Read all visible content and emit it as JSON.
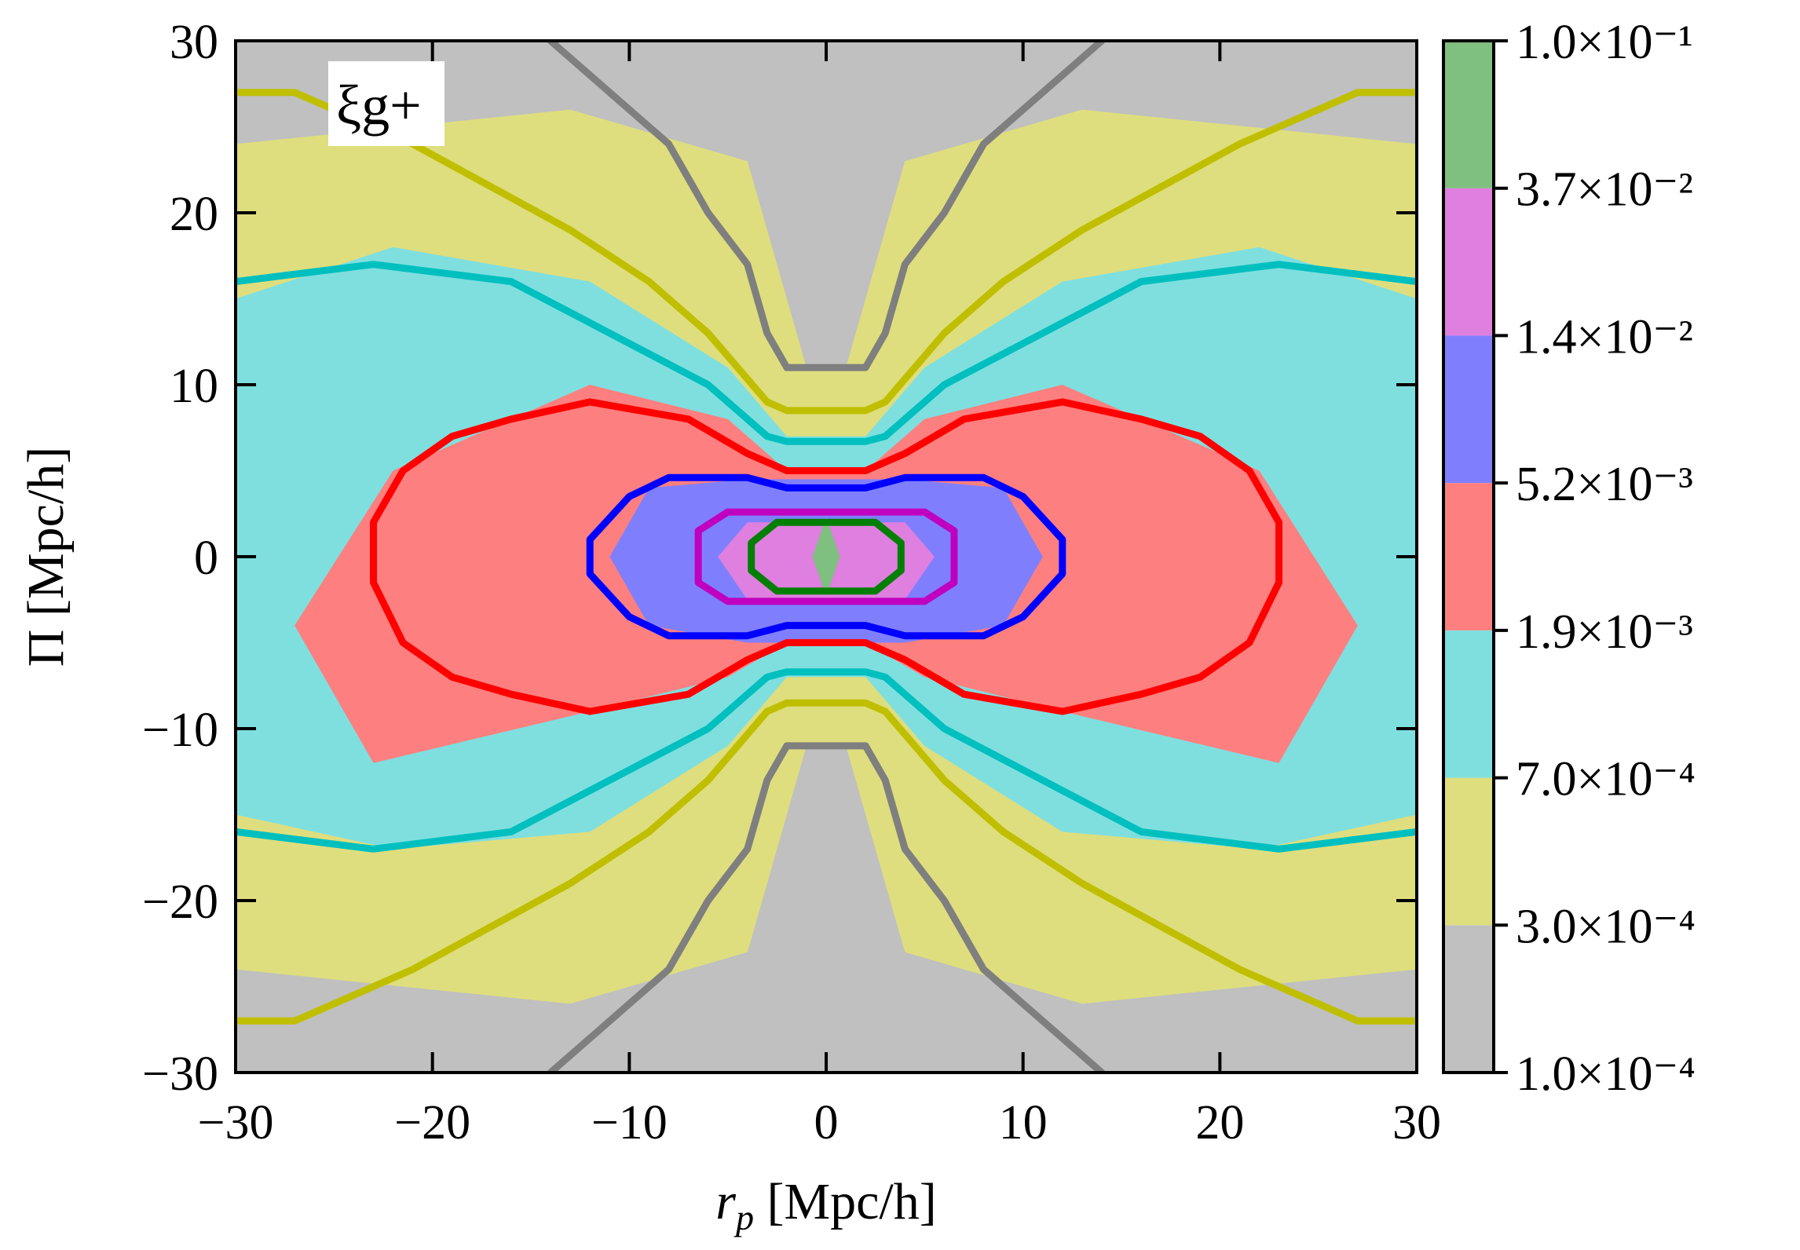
{
  "chart_data": {
    "type": "contour",
    "annotation": "ξg+",
    "xlabel": "r_p [Mpc/h]",
    "ylabel": "Π [Mpc/h]",
    "xlim": [
      -30,
      30
    ],
    "ylim": [
      -30,
      30
    ],
    "xticks": [
      "−30",
      "−20",
      "−10",
      "0",
      "10",
      "20",
      "30"
    ],
    "yticks": [
      "−30",
      "−20",
      "−10",
      "0",
      "10",
      "20",
      "30"
    ],
    "grid": false,
    "colorbar": {
      "position": "right",
      "levels": [
        "1.0×10⁻⁴",
        "3.0×10⁻⁴",
        "7.0×10⁻⁴",
        "1.9×10⁻³",
        "5.2×10⁻³",
        "1.4×10⁻²",
        "3.7×10⁻²",
        "1.0×10⁻¹"
      ],
      "level_values": [
        0.0001,
        0.0003,
        0.0007,
        0.0019,
        0.0052,
        0.014,
        0.037,
        0.1
      ],
      "band_colors": [
        "#c0c0c0",
        "#dede7e",
        "#7fdfdf",
        "#fe7f7f",
        "#7f7ffe",
        "#df7fdf",
        "#7fbf7f"
      ]
    },
    "filled_contours": [
      {
        "level_min": 0.0001,
        "level_max": 0.0003,
        "color": "#c0c0c0",
        "shape": [
          [
            -30,
            30
          ],
          [
            30,
            30
          ],
          [
            30,
            -30
          ],
          [
            -30,
            -30
          ]
        ]
      },
      {
        "level_min": 0.0003,
        "level_max": 0.0007,
        "color": "#dede7e",
        "shape": [
          [
            -30,
            24
          ],
          [
            -13,
            26
          ],
          [
            -4,
            23
          ],
          [
            -1,
            11
          ],
          [
            1,
            11
          ],
          [
            4,
            23
          ],
          [
            13,
            26
          ],
          [
            30,
            24
          ],
          [
            30,
            -24
          ],
          [
            13,
            -26
          ],
          [
            4,
            -23
          ],
          [
            1,
            -11
          ],
          [
            -1,
            -11
          ],
          [
            -4,
            -23
          ],
          [
            -13,
            -26
          ],
          [
            -30,
            -24
          ]
        ]
      },
      {
        "level_min": 0.0007,
        "level_max": 0.0019,
        "color": "#7fdfdf",
        "shape": [
          [
            -30,
            15
          ],
          [
            -22,
            18
          ],
          [
            -12,
            16
          ],
          [
            -5,
            11
          ],
          [
            -2,
            7
          ],
          [
            2,
            7
          ],
          [
            5,
            11
          ],
          [
            12,
            16
          ],
          [
            22,
            18
          ],
          [
            30,
            15
          ],
          [
            30,
            -15
          ],
          [
            22,
            -17
          ],
          [
            12,
            -16
          ],
          [
            5,
            -11
          ],
          [
            2,
            -7
          ],
          [
            -2,
            -7
          ],
          [
            -5,
            -11
          ],
          [
            -12,
            -16
          ],
          [
            -22,
            -17
          ],
          [
            -30,
            -15
          ]
        ]
      },
      {
        "level_min": 0.0019,
        "level_max": 0.0052,
        "color": "#fe7f7f",
        "shape": [
          [
            -27,
            -4
          ],
          [
            -22,
            5
          ],
          [
            -12,
            10
          ],
          [
            -5,
            8
          ],
          [
            -2,
            5
          ],
          [
            2,
            5
          ],
          [
            5,
            8
          ],
          [
            12,
            10
          ],
          [
            22,
            5
          ],
          [
            27,
            -4
          ],
          [
            23,
            -12
          ],
          [
            12,
            -9
          ],
          [
            5,
            -7
          ],
          [
            2,
            -5
          ],
          [
            -2,
            -5
          ],
          [
            -5,
            -7
          ],
          [
            -12,
            -9
          ],
          [
            -23,
            -12
          ]
        ]
      },
      {
        "level_min": 0.0052,
        "level_max": 0.014,
        "color": "#7f7ffe",
        "shape": [
          [
            -11,
            0
          ],
          [
            -9,
            4
          ],
          [
            -4,
            4.5
          ],
          [
            4,
            4.5
          ],
          [
            9,
            4
          ],
          [
            11,
            0
          ],
          [
            9,
            -4
          ],
          [
            4,
            -5
          ],
          [
            -4,
            -5
          ],
          [
            -9,
            -4
          ]
        ]
      },
      {
        "level_min": 0.014,
        "level_max": 0.037,
        "color": "#df7fdf",
        "shape": [
          [
            -5.5,
            0
          ],
          [
            -4,
            2
          ],
          [
            4,
            2
          ],
          [
            5.5,
            0
          ],
          [
            4,
            -2.5
          ],
          [
            -4,
            -2.5
          ]
        ]
      },
      {
        "level_min": 0.037,
        "level_max": 0.1,
        "color": "#7fbf7f",
        "shape": [
          [
            -0.7,
            0
          ],
          [
            0,
            2.3
          ],
          [
            0.7,
            0
          ],
          [
            0,
            -2.3
          ]
        ]
      }
    ],
    "line_contours": [
      {
        "color": "#7f7f7f",
        "level": 0.0001,
        "paths": [
          [
            [
              -14,
              30
            ],
            [
              -8,
              24
            ],
            [
              -6,
              20
            ],
            [
              -4,
              17
            ],
            [
              -3,
              13
            ],
            [
              -2,
              11
            ],
            [
              2,
              11
            ],
            [
              3,
              13
            ],
            [
              4,
              17
            ],
            [
              6,
              20
            ],
            [
              8,
              24
            ],
            [
              14,
              30
            ]
          ],
          [
            [
              -14,
              -30
            ],
            [
              -8,
              -24
            ],
            [
              -6,
              -20
            ],
            [
              -4,
              -17
            ],
            [
              -3,
              -13
            ],
            [
              -2,
              -11
            ],
            [
              2,
              -11
            ],
            [
              3,
              -13
            ],
            [
              4,
              -17
            ],
            [
              6,
              -20
            ],
            [
              8,
              -24
            ],
            [
              14,
              -30
            ]
          ]
        ]
      },
      {
        "color": "#bfbf00",
        "level": 0.0003,
        "paths": [
          [
            [
              -30,
              27
            ],
            [
              -27,
              27
            ],
            [
              -21,
              24
            ],
            [
              -13,
              19
            ],
            [
              -9,
              16
            ],
            [
              -6,
              13
            ],
            [
              -3,
              9
            ],
            [
              -2,
              8.5
            ],
            [
              2,
              8.5
            ],
            [
              3,
              9
            ],
            [
              6,
              13
            ],
            [
              9,
              16
            ],
            [
              13,
              19
            ],
            [
              21,
              24
            ],
            [
              27,
              27
            ],
            [
              30,
              27
            ]
          ],
          [
            [
              -30,
              -27
            ],
            [
              -27,
              -27
            ],
            [
              -21,
              -24
            ],
            [
              -13,
              -19
            ],
            [
              -9,
              -16
            ],
            [
              -6,
              -13
            ],
            [
              -3,
              -9
            ],
            [
              -2,
              -8.5
            ],
            [
              2,
              -8.5
            ],
            [
              3,
              -9
            ],
            [
              6,
              -13
            ],
            [
              9,
              -16
            ],
            [
              13,
              -19
            ],
            [
              21,
              -24
            ],
            [
              27,
              -27
            ],
            [
              30,
              -27
            ]
          ]
        ]
      },
      {
        "color": "#00bfbf",
        "level": 0.0007,
        "paths": [
          [
            [
              -30,
              16
            ],
            [
              -23,
              17
            ],
            [
              -16,
              16
            ],
            [
              -11,
              13
            ],
            [
              -6,
              10
            ],
            [
              -3,
              7
            ],
            [
              -2,
              6.7
            ],
            [
              2,
              6.7
            ],
            [
              3,
              7
            ],
            [
              6,
              10
            ],
            [
              11,
              13
            ],
            [
              16,
              16
            ],
            [
              23,
              17
            ],
            [
              30,
              16
            ]
          ],
          [
            [
              -30,
              -16
            ],
            [
              -23,
              -17
            ],
            [
              -16,
              -16
            ],
            [
              -11,
              -13
            ],
            [
              -6,
              -10
            ],
            [
              -3,
              -7
            ],
            [
              -2,
              -6.7
            ],
            [
              2,
              -6.7
            ],
            [
              3,
              -7
            ],
            [
              6,
              -10
            ],
            [
              11,
              -13
            ],
            [
              16,
              -16
            ],
            [
              23,
              -17
            ],
            [
              30,
              -16
            ]
          ]
        ]
      },
      {
        "color": "#ff0000",
        "level": 0.0019,
        "paths": [
          [
            [
              -2,
              5
            ],
            [
              -4,
              6
            ],
            [
              -7,
              8
            ],
            [
              -12,
              9
            ],
            [
              -16,
              8
            ],
            [
              -19,
              7
            ],
            [
              -21.5,
              5
            ],
            [
              -23,
              2
            ],
            [
              -23,
              -1.5
            ],
            [
              -21.5,
              -5
            ],
            [
              -19,
              -7
            ],
            [
              -16,
              -8
            ],
            [
              -12,
              -9
            ],
            [
              -7,
              -8
            ],
            [
              -4,
              -6
            ],
            [
              -2,
              -5
            ],
            [
              2,
              -5
            ],
            [
              4,
              -6
            ],
            [
              7,
              -8
            ],
            [
              12,
              -9
            ],
            [
              16,
              -8
            ],
            [
              19,
              -7
            ],
            [
              21.5,
              -5
            ],
            [
              23,
              -1.5
            ],
            [
              23,
              2
            ],
            [
              21.5,
              5
            ],
            [
              19,
              7
            ],
            [
              16,
              8
            ],
            [
              12,
              9
            ],
            [
              7,
              8
            ],
            [
              4,
              6
            ],
            [
              2,
              5
            ],
            [
              -2,
              5
            ]
          ]
        ]
      },
      {
        "color": "#0000ff",
        "level": 0.0052,
        "paths": [
          [
            [
              -2,
              4
            ],
            [
              -4,
              4.6
            ],
            [
              -8,
              4.6
            ],
            [
              -10,
              3.5
            ],
            [
              -12,
              1
            ],
            [
              -12,
              -1
            ],
            [
              -10,
              -3.5
            ],
            [
              -8,
              -4.6
            ],
            [
              -4,
              -4.6
            ],
            [
              -2,
              -4
            ],
            [
              2,
              -4
            ],
            [
              4,
              -4.6
            ],
            [
              8,
              -4.6
            ],
            [
              10,
              -3.5
            ],
            [
              12,
              -1
            ],
            [
              12,
              1
            ],
            [
              10,
              3.5
            ],
            [
              8,
              4.6
            ],
            [
              4,
              4.6
            ],
            [
              2,
              4
            ],
            [
              -2,
              4
            ]
          ]
        ]
      },
      {
        "color": "#bf00bf",
        "level": 0.014,
        "paths": [
          [
            [
              -6.5,
              1.5
            ],
            [
              -6.5,
              -1.5
            ],
            [
              -5,
              -2.6
            ],
            [
              5,
              -2.6
            ],
            [
              6.5,
              -1.5
            ],
            [
              6.5,
              1.5
            ],
            [
              5,
              2.6
            ],
            [
              -5,
              2.6
            ],
            [
              -6.5,
              1.5
            ]
          ]
        ]
      },
      {
        "color": "#007f00",
        "level": 0.037,
        "paths": [
          [
            [
              -3.8,
              0.8
            ],
            [
              -3.8,
              -0.8
            ],
            [
              -2.5,
              -2
            ],
            [
              2.5,
              -2
            ],
            [
              3.8,
              -0.8
            ],
            [
              3.8,
              0.8
            ],
            [
              2.5,
              2
            ],
            [
              -2.5,
              2
            ],
            [
              -3.8,
              0.8
            ]
          ]
        ]
      }
    ]
  }
}
